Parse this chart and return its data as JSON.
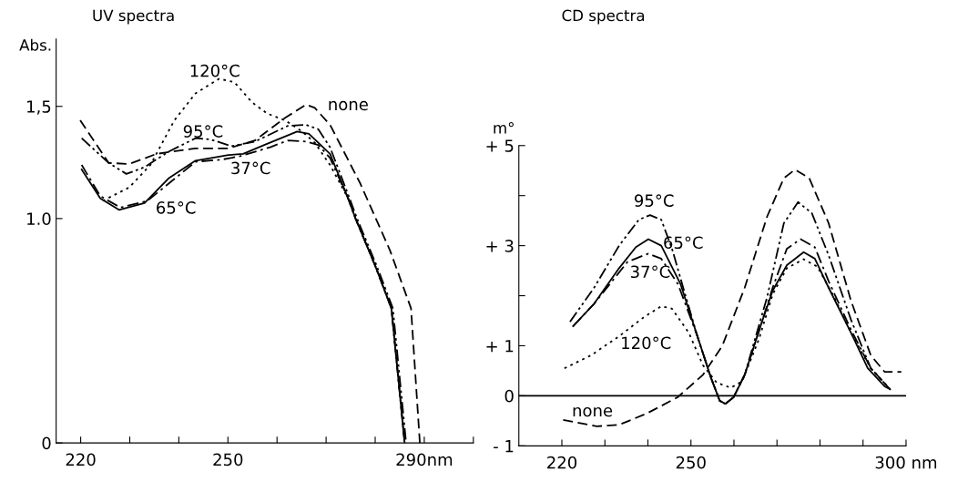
{
  "chart_data": [
    {
      "type": "line",
      "title": "UV spectra",
      "ylabel": "Abs.",
      "xlim": [
        215,
        300
      ],
      "ylim": [
        0,
        1.8
      ],
      "xticks": [
        220,
        {
          "value": 230,
          "label": null
        },
        {
          "value": 240,
          "label": null
        },
        250,
        {
          "value": 260,
          "label": null
        },
        {
          "value": 270,
          "label": null
        },
        {
          "value": 280,
          "label": null
        },
        {
          "value": 290,
          "label": "290nm"
        },
        {
          "value": 300,
          "label": null
        }
      ],
      "yticks": [
        0,
        {
          "value": 1.0,
          "label": "1.0"
        },
        {
          "value": 1.5,
          "label": "1,5"
        }
      ],
      "grid": false,
      "legend": false,
      "marker": "none",
      "series": [
        {
          "name": "65°C",
          "color": "#000000",
          "line_style": "solid",
          "x": [
            220.2,
            224,
            227.8,
            233,
            237.9,
            243.4,
            250.1,
            253.1,
            257.4,
            264.1,
            266.5,
            270.8,
            274.5,
            276,
            280,
            283.3,
            286
          ],
          "values": [
            1.219,
            1.09,
            1.039,
            1.069,
            1.179,
            1.258,
            1.283,
            1.288,
            1.328,
            1.388,
            1.378,
            1.288,
            1.089,
            1.0,
            0.79,
            0.6,
            0
          ]
        },
        {
          "name": "37°C",
          "color": "#000000",
          "line_style": "dashdot",
          "x": [
            220.2,
            224,
            228.1,
            233.6,
            243.4,
            248.8,
            252.5,
            258.6,
            262.2,
            265.9,
            268.4,
            270.8,
            274.5,
            276,
            280,
            283.3,
            286
          ],
          "values": [
            1.239,
            1.1,
            1.049,
            1.079,
            1.253,
            1.263,
            1.278,
            1.318,
            1.348,
            1.343,
            1.328,
            1.27,
            1.089,
            1.0,
            0.79,
            0.6,
            0
          ]
        },
        {
          "name": "95°C",
          "color": "#000000",
          "line_style": "dashdotdot",
          "x": [
            220.2,
            225.7,
            229.3,
            233,
            237.9,
            243.4,
            246.4,
            250.7,
            255.5,
            262.2,
            265.9,
            268.4,
            270.8,
            274.8,
            276.3,
            280.3,
            283.6,
            286.3
          ],
          "values": [
            1.358,
            1.248,
            1.199,
            1.229,
            1.298,
            1.358,
            1.353,
            1.323,
            1.343,
            1.413,
            1.418,
            1.398,
            1.318,
            1.089,
            1.0,
            0.79,
            0.6,
            0
          ]
        },
        {
          "name": "none",
          "color": "#000000",
          "line_style": "dashed",
          "x": [
            219.9,
            225.7,
            229.9,
            235.4,
            243.4,
            250.1,
            255.5,
            261.6,
            265.9,
            267.7,
            270.8,
            276.9,
            283,
            287.3,
            289.1
          ],
          "values": [
            1.438,
            1.248,
            1.243,
            1.288,
            1.313,
            1.313,
            1.348,
            1.448,
            1.508,
            1.493,
            1.418,
            1.159,
            0.859,
            0.6,
            0
          ]
        },
        {
          "name": "120°C",
          "color": "#000000",
          "line_style": "dotted",
          "x": [
            224.5,
            229.9,
            234.2,
            239.1,
            243.4,
            248.2,
            251.3,
            254.9,
            258,
            261.6,
            265,
            267.7,
            270.8,
            274.5,
            276,
            280,
            283.3,
            286
          ],
          "values": [
            1.079,
            1.139,
            1.239,
            1.438,
            1.558,
            1.623,
            1.608,
            1.518,
            1.468,
            1.438,
            1.39,
            1.338,
            1.239,
            1.089,
            1.0,
            0.79,
            0.6,
            0
          ]
        }
      ]
    },
    {
      "type": "line",
      "title": "CD spectra",
      "ylabel": "m°",
      "xlim": [
        210,
        300
      ],
      "ylim": [
        -1,
        5
      ],
      "xticks": [
        220,
        {
          "value": 230,
          "label": null
        },
        {
          "value": 240,
          "label": null
        },
        250,
        {
          "value": 260,
          "label": null
        },
        {
          "value": 270,
          "label": null
        },
        {
          "value": 280,
          "label": null
        },
        {
          "value": 290,
          "label": null
        },
        {
          "value": 300,
          "label": "300 nm"
        }
      ],
      "yticks": [
        {
          "value": -1,
          "label": "- 1"
        },
        0,
        {
          "value": 1,
          "label": "+ 1"
        },
        {
          "value": 2,
          "label": null
        },
        {
          "value": 3,
          "label": "+ 3"
        },
        {
          "value": 4,
          "label": null
        },
        {
          "value": 5,
          "label": "+ 5"
        }
      ],
      "grid": false,
      "legend": false,
      "marker": "none",
      "ref_lines": [
        {
          "axis": "y",
          "value": 0,
          "color": "#000000",
          "line_style": "solid"
        }
      ],
      "series": [
        {
          "name": "none",
          "color": "#000000",
          "line_style": "dashed",
          "x": [
            220.3,
            228.1,
            233.3,
            239.8,
            246.9,
            252.8,
            257.3,
            262.5,
            267.7,
            271.6,
            274.2,
            277.5,
            282,
            287.2,
            291.8,
            295,
            298.9
          ],
          "values": [
            -0.48,
            -0.61,
            -0.58,
            -0.35,
            -0.03,
            0.42,
            1.0,
            2.16,
            3.58,
            4.35,
            4.52,
            4.35,
            3.45,
            1.9,
            0.81,
            0.48,
            0.48
          ]
        },
        {
          "name": "65°C",
          "color": "#000000",
          "line_style": "solid",
          "x": [
            222.6,
            227.5,
            233.3,
            237.2,
            240.1,
            243.1,
            247.6,
            251.5,
            254.7,
            256.7,
            258,
            259.9,
            262.5,
            266.4,
            269,
            272.3,
            276.2,
            278.8,
            282,
            287.2,
            291.1,
            295,
            296.3
          ],
          "values": [
            1.39,
            1.84,
            2.55,
            2.97,
            3.13,
            3.0,
            2.23,
            1.19,
            0.35,
            -0.1,
            -0.16,
            -0.03,
            0.42,
            1.45,
            2.1,
            2.61,
            2.87,
            2.74,
            2.16,
            1.26,
            0.55,
            0.19,
            0.13
          ]
        },
        {
          "name": "95°C",
          "color": "#000000",
          "line_style": "dashdotdot",
          "x": [
            221.9,
            227.5,
            233.3,
            237.9,
            240.5,
            243.1,
            245.6,
            248.2,
            251.5,
            254.7,
            256.7,
            258,
            259.9,
            262.5,
            267.7,
            271.6,
            274.9,
            278.1,
            282,
            287.2,
            291.8,
            296.3
          ],
          "values": [
            1.48,
            2.16,
            3.0,
            3.52,
            3.61,
            3.52,
            2.94,
            2.16,
            1.19,
            0.35,
            -0.1,
            -0.16,
            -0.03,
            0.42,
            1.97,
            3.45,
            3.87,
            3.65,
            2.81,
            1.52,
            0.55,
            0.13
          ]
        },
        {
          "name": "37°C",
          "color": "#000000",
          "line_style": "dashdot",
          "x": [
            222.6,
            227.5,
            235.3,
            240.1,
            243.1,
            247,
            251.5,
            254.7,
            256.7,
            258,
            259.9,
            262.5,
            266.4,
            269,
            272.3,
            275.5,
            278.8,
            282,
            287.2,
            291.8,
            296.3
          ],
          "values": [
            1.39,
            1.84,
            2.68,
            2.84,
            2.74,
            2.23,
            1.19,
            0.35,
            -0.1,
            -0.16,
            -0.03,
            0.42,
            1.45,
            2.16,
            2.94,
            3.13,
            2.97,
            2.29,
            1.32,
            0.55,
            0.13
          ]
        },
        {
          "name": "120°C",
          "color": "#000000",
          "line_style": "dotted",
          "x": [
            220.6,
            226.8,
            233.3,
            239.2,
            243.1,
            245.6,
            249.5,
            252.8,
            256,
            259.3,
            261.9,
            265.8,
            269,
            272.3,
            276.2,
            279.4,
            283.3,
            287.2,
            291.8,
            296.3
          ],
          "values": [
            0.55,
            0.81,
            1.19,
            1.58,
            1.79,
            1.74,
            1.26,
            0.61,
            0.26,
            0.16,
            0.29,
            1.13,
            2.03,
            2.55,
            2.73,
            2.58,
            1.97,
            1.26,
            0.55,
            0.13
          ]
        }
      ]
    }
  ]
}
